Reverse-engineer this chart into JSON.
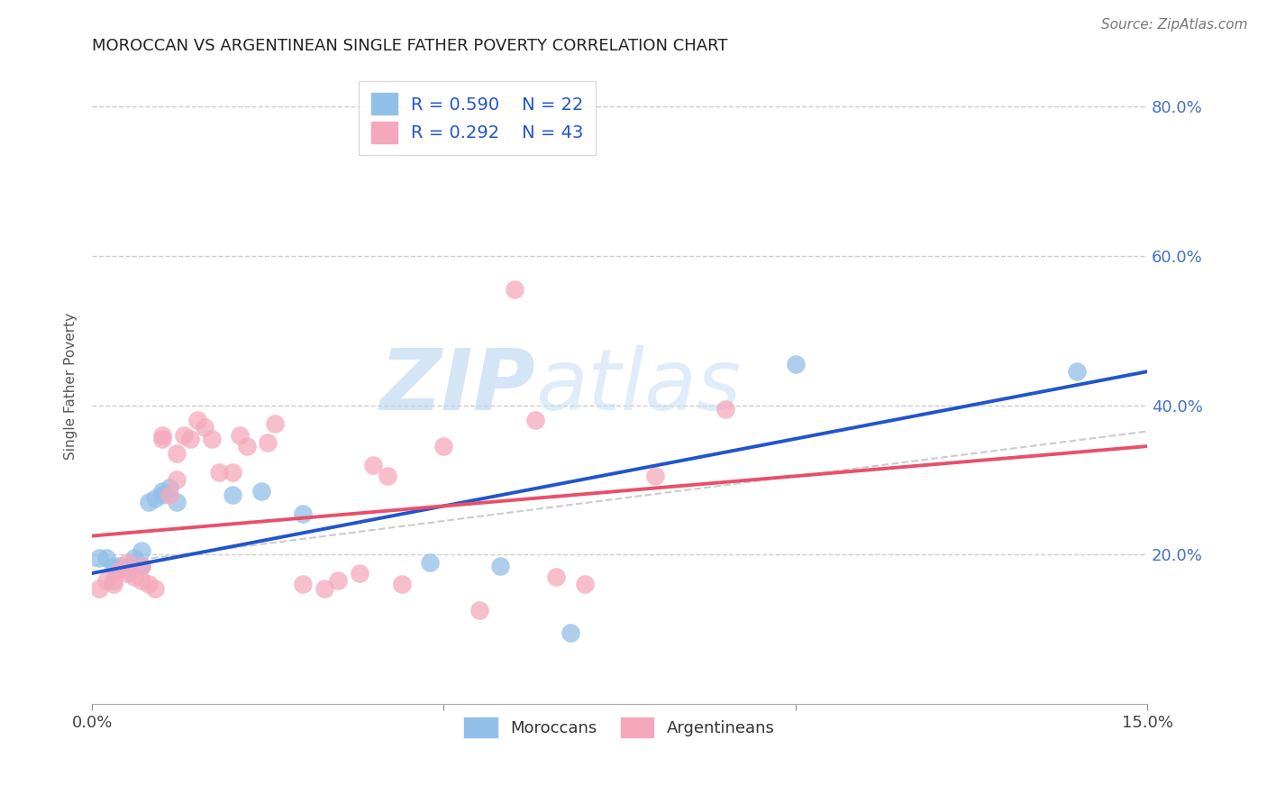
{
  "title": "MOROCCAN VS ARGENTINEAN SINGLE FATHER POVERTY CORRELATION CHART",
  "source": "Source: ZipAtlas.com",
  "ylabel": "Single Father Poverty",
  "xlim": [
    0.0,
    0.15
  ],
  "ylim": [
    0.0,
    0.85
  ],
  "moroccan_R": 0.59,
  "moroccan_N": 22,
  "argentinean_R": 0.292,
  "argentinean_N": 43,
  "moroccan_color": "#92c0e8",
  "argentinean_color": "#f5a8bc",
  "moroccan_line_color": "#2255cc",
  "argentinean_line_color": "#e8506a",
  "moroccan_line": [
    0.0,
    0.175,
    0.15,
    0.445
  ],
  "argentinean_line": [
    0.0,
    0.225,
    0.15,
    0.345
  ],
  "dashed_line": [
    0.0,
    0.185,
    0.15,
    0.365
  ],
  "moroccan_points": [
    [
      0.001,
      0.195
    ],
    [
      0.002,
      0.195
    ],
    [
      0.003,
      0.185
    ],
    [
      0.004,
      0.185
    ],
    [
      0.005,
      0.18
    ],
    [
      0.006,
      0.195
    ],
    [
      0.007,
      0.185
    ],
    [
      0.007,
      0.205
    ],
    [
      0.008,
      0.27
    ],
    [
      0.009,
      0.275
    ],
    [
      0.01,
      0.28
    ],
    [
      0.01,
      0.285
    ],
    [
      0.011,
      0.29
    ],
    [
      0.012,
      0.27
    ],
    [
      0.02,
      0.28
    ],
    [
      0.024,
      0.285
    ],
    [
      0.03,
      0.255
    ],
    [
      0.048,
      0.19
    ],
    [
      0.058,
      0.185
    ],
    [
      0.068,
      0.095
    ],
    [
      0.1,
      0.455
    ],
    [
      0.14,
      0.445
    ]
  ],
  "argentinean_points": [
    [
      0.001,
      0.155
    ],
    [
      0.002,
      0.165
    ],
    [
      0.003,
      0.165
    ],
    [
      0.003,
      0.16
    ],
    [
      0.004,
      0.18
    ],
    [
      0.005,
      0.175
    ],
    [
      0.005,
      0.19
    ],
    [
      0.006,
      0.17
    ],
    [
      0.007,
      0.185
    ],
    [
      0.007,
      0.165
    ],
    [
      0.008,
      0.16
    ],
    [
      0.009,
      0.155
    ],
    [
      0.01,
      0.355
    ],
    [
      0.01,
      0.36
    ],
    [
      0.011,
      0.28
    ],
    [
      0.012,
      0.3
    ],
    [
      0.012,
      0.335
    ],
    [
      0.013,
      0.36
    ],
    [
      0.014,
      0.355
    ],
    [
      0.015,
      0.38
    ],
    [
      0.016,
      0.37
    ],
    [
      0.017,
      0.355
    ],
    [
      0.018,
      0.31
    ],
    [
      0.02,
      0.31
    ],
    [
      0.021,
      0.36
    ],
    [
      0.022,
      0.345
    ],
    [
      0.025,
      0.35
    ],
    [
      0.026,
      0.375
    ],
    [
      0.03,
      0.16
    ],
    [
      0.033,
      0.155
    ],
    [
      0.035,
      0.165
    ],
    [
      0.038,
      0.175
    ],
    [
      0.04,
      0.32
    ],
    [
      0.042,
      0.305
    ],
    [
      0.044,
      0.16
    ],
    [
      0.05,
      0.345
    ],
    [
      0.055,
      0.125
    ],
    [
      0.06,
      0.555
    ],
    [
      0.063,
      0.38
    ],
    [
      0.066,
      0.17
    ],
    [
      0.07,
      0.16
    ],
    [
      0.08,
      0.305
    ],
    [
      0.09,
      0.395
    ]
  ]
}
